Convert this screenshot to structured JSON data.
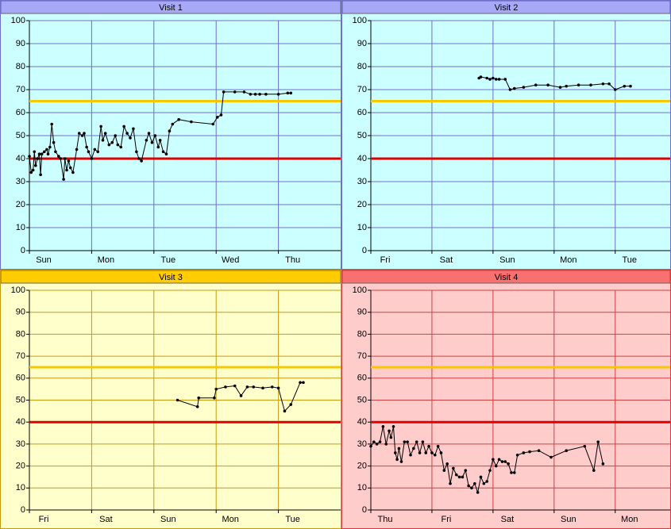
{
  "chart_data": [
    {
      "type": "line",
      "title": "Visit 1",
      "x": [
        0.0,
        0.03,
        0.06,
        0.08,
        0.1,
        0.13,
        0.16,
        0.18,
        0.2,
        0.24,
        0.28,
        0.3,
        0.33,
        0.36,
        0.39,
        0.42,
        0.47,
        0.5,
        0.55,
        0.57,
        0.6,
        0.63,
        0.66,
        0.7,
        0.76,
        0.8,
        0.85,
        0.88,
        0.92,
        0.95,
        1.0,
        1.05,
        1.1,
        1.15,
        1.18,
        1.22,
        1.28,
        1.33,
        1.38,
        1.42,
        1.47,
        1.52,
        1.57,
        1.62,
        1.67,
        1.72,
        1.76,
        1.8,
        1.88,
        1.92,
        1.97,
        2.02,
        2.07,
        2.1,
        2.15,
        2.2,
        2.25,
        2.3,
        2.4,
        2.6,
        2.95,
        3.02,
        3.08,
        3.12,
        3.3,
        3.45,
        3.55,
        3.63,
        3.7,
        3.8,
        4.0,
        4.15,
        4.2
      ],
      "series": [
        {
          "color": "#000000",
          "values": [
            41,
            34,
            35,
            43,
            37,
            40,
            42,
            33,
            42,
            43,
            44,
            42,
            45,
            55,
            47,
            43,
            41,
            40,
            31,
            40,
            35,
            39,
            36,
            34,
            44,
            51,
            50,
            51,
            45,
            43,
            40,
            44,
            43,
            54,
            48,
            51,
            46,
            47,
            50,
            46,
            45,
            54,
            51,
            49,
            53,
            43,
            40,
            39,
            48,
            51,
            47,
            50,
            45,
            48,
            43,
            42,
            52,
            55,
            57,
            56,
            55,
            58,
            59,
            69,
            69,
            69,
            68,
            68,
            68,
            68,
            68,
            68.5,
            68.5
          ]
        }
      ],
      "xlim": [
        0,
        5
      ],
      "ylim": [
        0,
        100
      ],
      "xticks": [
        {
          "value": 0,
          "label": "Sun"
        },
        {
          "value": 1,
          "label": "Mon"
        },
        {
          "value": 2,
          "label": "Tue"
        },
        {
          "value": 3,
          "label": "Wed"
        },
        {
          "value": 4,
          "label": "Thu"
        }
      ],
      "yticks": [
        0,
        10,
        20,
        30,
        40,
        50,
        60,
        70,
        80,
        90,
        100
      ],
      "reference_lines": [
        {
          "value": 65,
          "color": "#f5c800"
        },
        {
          "value": 40,
          "color": "#e00000"
        }
      ],
      "background": "#ccffff",
      "header_color": "#a8a8f8",
      "grid_color": "#6f6fc8",
      "grid": true
    },
    {
      "type": "line",
      "title": "Visit 2",
      "x": [
        1.77,
        1.8,
        1.9,
        1.95,
        2.0,
        2.05,
        2.1,
        2.2,
        2.28,
        2.35,
        2.5,
        2.7,
        2.9,
        3.1,
        3.2,
        3.4,
        3.6,
        3.8,
        3.9,
        4.0,
        4.15,
        4.25
      ],
      "series": [
        {
          "color": "#000000",
          "values": [
            75,
            75.5,
            75,
            74.5,
            75,
            74.5,
            74.5,
            74.5,
            70,
            70.5,
            71,
            72,
            72,
            71,
            71.5,
            72,
            72,
            72.5,
            72.5,
            70,
            71.5,
            71.5
          ]
        }
      ],
      "xlim": [
        0,
        4.9
      ],
      "ylim": [
        0,
        100
      ],
      "xticks": [
        {
          "value": 0,
          "label": "Fri"
        },
        {
          "value": 1,
          "label": "Sat"
        },
        {
          "value": 2,
          "label": "Sun"
        },
        {
          "value": 3,
          "label": "Mon"
        },
        {
          "value": 4,
          "label": "Tue"
        }
      ],
      "yticks": [
        0,
        10,
        20,
        30,
        40,
        50,
        60,
        70,
        80,
        90,
        100
      ],
      "reference_lines": [
        {
          "value": 65,
          "color": "#f5c800"
        },
        {
          "value": 40,
          "color": "#e00000"
        }
      ],
      "background": "#ccffff",
      "header_color": "#a8a8f8",
      "grid_color": "#6f6fc8",
      "grid": true
    },
    {
      "type": "line",
      "title": "Visit 3",
      "x": [
        2.38,
        2.7,
        2.72,
        2.97,
        3.0,
        3.15,
        3.3,
        3.4,
        3.5,
        3.6,
        3.75,
        3.9,
        4.0,
        4.1,
        4.2,
        4.35,
        4.4
      ],
      "series": [
        {
          "color": "#000000",
          "values": [
            50,
            47,
            51,
            51,
            55,
            56,
            56.5,
            52,
            56,
            56,
            55.5,
            56,
            55.5,
            45,
            48,
            58,
            58
          ]
        }
      ],
      "xlim": [
        0,
        5
      ],
      "ylim": [
        0,
        100
      ],
      "xticks": [
        {
          "value": 0,
          "label": "Fri"
        },
        {
          "value": 1,
          "label": "Sat"
        },
        {
          "value": 2,
          "label": "Sun"
        },
        {
          "value": 3,
          "label": "Mon"
        },
        {
          "value": 4,
          "label": "Tue"
        }
      ],
      "yticks": [
        0,
        10,
        20,
        30,
        40,
        50,
        60,
        70,
        80,
        90,
        100
      ],
      "reference_lines": [
        {
          "value": 65,
          "color": "#f5c800"
        },
        {
          "value": 40,
          "color": "#e00000"
        }
      ],
      "background": "#ffffcc",
      "header_color": "#ffcc00",
      "grid_color": "#c89a10",
      "grid": true
    },
    {
      "type": "line",
      "title": "Visit 4",
      "x": [
        0.0,
        0.05,
        0.1,
        0.15,
        0.2,
        0.25,
        0.3,
        0.33,
        0.37,
        0.4,
        0.43,
        0.46,
        0.5,
        0.55,
        0.6,
        0.65,
        0.7,
        0.75,
        0.8,
        0.85,
        0.9,
        0.95,
        1.0,
        1.05,
        1.1,
        1.15,
        1.2,
        1.25,
        1.3,
        1.35,
        1.4,
        1.45,
        1.5,
        1.55,
        1.6,
        1.65,
        1.7,
        1.75,
        1.8,
        1.85,
        1.9,
        1.95,
        2.0,
        2.05,
        2.1,
        2.15,
        2.2,
        2.25,
        2.3,
        2.35,
        2.4,
        2.5,
        2.6,
        2.75,
        2.95,
        3.2,
        3.5,
        3.65,
        3.72,
        3.8
      ],
      "series": [
        {
          "color": "#000000",
          "values": [
            29,
            31,
            30,
            31,
            38,
            30,
            36,
            33,
            38,
            26,
            23,
            28,
            22,
            31,
            31,
            25,
            28,
            31,
            26,
            31,
            26,
            29,
            26,
            25,
            29,
            26,
            18,
            21,
            12,
            19,
            16,
            15,
            15,
            18,
            11,
            10,
            12,
            8,
            15,
            12,
            13,
            18,
            23,
            20,
            23,
            22,
            22,
            21,
            17,
            17,
            25,
            26,
            26.5,
            27,
            24,
            27,
            29,
            18,
            31,
            21
          ]
        }
      ],
      "xlim": [
        0,
        4.9
      ],
      "ylim": [
        0,
        100
      ],
      "xticks": [
        {
          "value": 0,
          "label": "Thu"
        },
        {
          "value": 1,
          "label": "Fri"
        },
        {
          "value": 2,
          "label": "Sat"
        },
        {
          "value": 3,
          "label": "Sun"
        },
        {
          "value": 4,
          "label": "Mon"
        }
      ],
      "yticks": [
        0,
        10,
        20,
        30,
        40,
        50,
        60,
        70,
        80,
        90,
        100
      ],
      "reference_lines": [
        {
          "value": 65,
          "color": "#f5c800"
        },
        {
          "value": 40,
          "color": "#e00000"
        }
      ],
      "background": "#ffcccc",
      "header_color": "#f87070",
      "grid_color": "#d04040",
      "grid": true
    }
  ]
}
